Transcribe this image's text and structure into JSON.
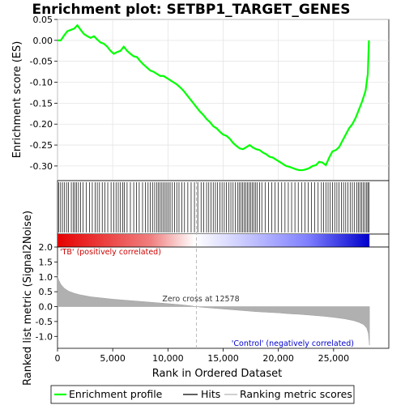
{
  "chart_data": [
    {
      "type": "line",
      "title": "Enrichment plot: SETBP1_TARGET_GENES",
      "ylabel": "Enrichment score (ES)",
      "ylim": [
        -0.335,
        0.05
      ],
      "yticks": [
        0.05,
        0.0,
        -0.05,
        -0.1,
        -0.15,
        -0.2,
        -0.25,
        -0.3
      ],
      "ytick_labels": [
        "0.05",
        "0.00",
        "-0.05",
        "-0.10",
        "-0.15",
        "-0.20",
        "-0.25",
        "-0.30"
      ],
      "grid": true,
      "series": [
        {
          "name": "Enrichment profile",
          "color": "#00ff00",
          "x": [
            0,
            300,
            600,
            900,
            1200,
            1500,
            1800,
            2100,
            2400,
            2700,
            3000,
            3300,
            3600,
            3900,
            4200,
            4500,
            4800,
            5100,
            5400,
            5700,
            6000,
            6300,
            6600,
            6900,
            7200,
            7500,
            7800,
            8100,
            8400,
            8700,
            9000,
            9300,
            9600,
            9900,
            10200,
            10500,
            10800,
            11100,
            11400,
            11700,
            12000,
            12300,
            12600,
            12900,
            13200,
            13500,
            13800,
            14100,
            14400,
            14700,
            15000,
            15300,
            15600,
            15900,
            16200,
            16500,
            16800,
            17100,
            17400,
            17700,
            18000,
            18300,
            18600,
            18900,
            19200,
            19500,
            19800,
            20100,
            20400,
            20700,
            21000,
            21300,
            21600,
            21900,
            22200,
            22500,
            22800,
            23100,
            23400,
            23700,
            24000,
            24300,
            24600,
            24900,
            25200,
            25500,
            25800,
            26100,
            26400,
            26700,
            27000,
            27300,
            27600,
            27900,
            28100,
            28200
          ],
          "y": [
            0.0,
            0.0,
            0.012,
            0.022,
            0.025,
            0.028,
            0.036,
            0.025,
            0.015,
            0.01,
            0.006,
            0.01,
            0.002,
            -0.005,
            -0.008,
            -0.015,
            -0.025,
            -0.032,
            -0.028,
            -0.025,
            -0.015,
            -0.025,
            -0.032,
            -0.038,
            -0.04,
            -0.05,
            -0.058,
            -0.065,
            -0.072,
            -0.075,
            -0.08,
            -0.085,
            -0.085,
            -0.09,
            -0.095,
            -0.1,
            -0.105,
            -0.112,
            -0.12,
            -0.13,
            -0.14,
            -0.15,
            -0.16,
            -0.17,
            -0.178,
            -0.188,
            -0.195,
            -0.205,
            -0.21,
            -0.218,
            -0.225,
            -0.228,
            -0.235,
            -0.245,
            -0.252,
            -0.258,
            -0.26,
            -0.255,
            -0.25,
            -0.256,
            -0.26,
            -0.262,
            -0.268,
            -0.272,
            -0.278,
            -0.28,
            -0.285,
            -0.29,
            -0.295,
            -0.3,
            -0.302,
            -0.305,
            -0.308,
            -0.31,
            -0.31,
            -0.308,
            -0.305,
            -0.3,
            -0.298,
            -0.29,
            -0.292,
            -0.298,
            -0.28,
            -0.265,
            -0.262,
            -0.255,
            -0.24,
            -0.225,
            -0.21,
            -0.2,
            -0.185,
            -0.165,
            -0.145,
            -0.12,
            -0.08,
            0.0
          ]
        }
      ]
    },
    {
      "type": "hits",
      "series": [
        {
          "name": "Hits",
          "color": "#000000"
        }
      ],
      "hit_positions": [
        100,
        280,
        450,
        640,
        820,
        1000,
        1250,
        1420,
        1580,
        1720,
        1900,
        2080,
        2300,
        2600,
        2900,
        3150,
        3400,
        3600,
        3800,
        4050,
        4300,
        4550,
        4850,
        5100,
        5300,
        5500,
        5700,
        5900,
        6050,
        6300,
        6600,
        6900,
        7150,
        7400,
        7700,
        7950,
        8200,
        8400,
        8600,
        8800,
        9000,
        9150,
        9300,
        9450,
        9600,
        9750,
        9900,
        10050,
        10200,
        10400,
        10600,
        10800,
        11000,
        11250,
        11500,
        11800,
        12100,
        12400,
        12700,
        13000,
        13250,
        13500,
        13700,
        13900,
        14100,
        14300,
        14500,
        14700,
        14900,
        15100,
        15300,
        15500,
        15700,
        15900,
        16100,
        16300,
        16450,
        16600,
        16750,
        16900,
        17050,
        17200,
        17350,
        17500,
        17650,
        17800,
        17950,
        18100,
        18300,
        18500,
        18800,
        19100,
        19400,
        19700,
        20000,
        20300,
        20600,
        20900,
        21200,
        21500,
        21800,
        22100,
        22400,
        22700,
        23000,
        23300,
        23600,
        23900,
        24100,
        24300,
        24500,
        24700,
        24900,
        25100,
        25300,
        25500,
        25700,
        25900,
        26100,
        26300,
        26500,
        26700,
        26900,
        27100,
        27250,
        27400,
        27550,
        27700,
        27850,
        28000,
        28100,
        28200
      ]
    },
    {
      "type": "area",
      "xlabel": "Rank in Ordered Dataset",
      "ylabel": "Ranked list metric (Signal2Noise)",
      "xlim": [
        0,
        30000
      ],
      "xticks": [
        0,
        5000,
        10000,
        15000,
        20000,
        25000
      ],
      "xtick_labels": [
        "0",
        "5,000",
        "10,000",
        "15,000",
        "20,000",
        "25,000"
      ],
      "ylim": [
        -1.4,
        2.0
      ],
      "yticks": [
        2.0,
        1.5,
        1.0,
        0.5,
        0.0,
        -0.5,
        -1.0
      ],
      "ytick_labels": [
        "2.0",
        "1.5",
        "1.0",
        "0.5",
        "0.0",
        "-0.5",
        "-1.0"
      ],
      "series": [
        {
          "name": "Ranking metric scores",
          "color": "#b0b0b0",
          "x": [
            0,
            100,
            300,
            600,
            1000,
            1500,
            2000,
            3000,
            4000,
            5000,
            6000,
            7000,
            8000,
            9000,
            10000,
            11000,
            12000,
            12578,
            13000,
            14000,
            15000,
            16000,
            17000,
            18000,
            19000,
            20000,
            21000,
            22000,
            23000,
            24000,
            25000,
            26000,
            26800,
            27300,
            27700,
            28000,
            28150,
            28250
          ],
          "y": [
            1.05,
            0.9,
            0.75,
            0.62,
            0.52,
            0.45,
            0.4,
            0.33,
            0.29,
            0.25,
            0.22,
            0.19,
            0.16,
            0.13,
            0.1,
            0.07,
            0.03,
            0.0,
            -0.02,
            -0.05,
            -0.08,
            -0.11,
            -0.14,
            -0.17,
            -0.19,
            -0.21,
            -0.24,
            -0.26,
            -0.29,
            -0.32,
            -0.36,
            -0.41,
            -0.47,
            -0.53,
            -0.6,
            -0.72,
            -0.9,
            -1.3
          ]
        }
      ],
      "zero_cross": 12578,
      "annotations": {
        "zero_cross": "Zero cross at 12578",
        "positive": "'TB' (positively correlated)",
        "negative": "'Control' (negatively correlated)"
      },
      "colors": {
        "positive_label": "#cc0000",
        "negative_label": "#0000cc"
      }
    }
  ],
  "legend": {
    "placement": "bottom",
    "items": [
      {
        "label": "Enrichment profile",
        "color": "#00ff00"
      },
      {
        "label": "Hits",
        "color": "#000000"
      },
      {
        "label": "Ranking metric scores",
        "color": "#b0b0b0"
      }
    ]
  }
}
